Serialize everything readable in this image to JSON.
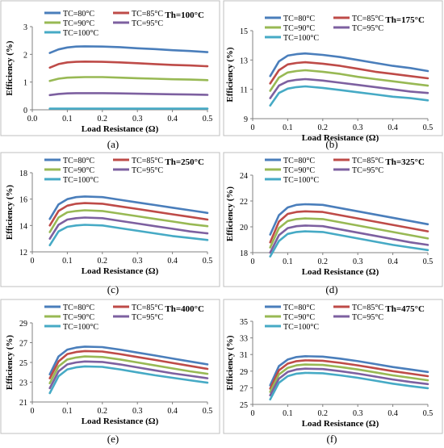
{
  "colors": {
    "TC=80°C": "#4a7ebb",
    "TC=85°C": "#be4b48",
    "TC=90°C": "#98b954",
    "TC=95°C": "#7d60a0",
    "TC=100°C": "#46aac5"
  },
  "legend_labels": [
    "TC=80°C",
    "TC=85°C",
    "TC=90°C",
    "TC=95°C",
    "TC=100°C"
  ],
  "chart_data": [
    {
      "type": "line",
      "panel": "(a)",
      "title": "Th=100°C",
      "xlabel": "Load Resistance (Ω)",
      "ylabel": "Efficiency (%)",
      "xlim": [
        0,
        0.5
      ],
      "ylim": [
        0,
        3
      ],
      "xticks": [
        "0.0",
        "0.1",
        "0.2",
        "0.3",
        "0.4",
        "0.5"
      ],
      "yticks": [
        "0",
        "1",
        "2",
        "3"
      ],
      "legend_position": "top",
      "x": [
        0.05,
        0.075,
        0.1,
        0.125,
        0.15,
        0.2,
        0.25,
        0.3,
        0.35,
        0.4,
        0.45,
        0.5
      ],
      "series": [
        {
          "name": "TC=80°C",
          "values": [
            2.05,
            2.18,
            2.25,
            2.28,
            2.29,
            2.28,
            2.26,
            2.22,
            2.19,
            2.15,
            2.12,
            2.08
          ]
        },
        {
          "name": "TC=85°C",
          "values": [
            1.52,
            1.65,
            1.71,
            1.73,
            1.74,
            1.73,
            1.71,
            1.68,
            1.65,
            1.62,
            1.6,
            1.57
          ]
        },
        {
          "name": "TC=90°C",
          "values": [
            1.04,
            1.12,
            1.16,
            1.17,
            1.18,
            1.18,
            1.16,
            1.14,
            1.12,
            1.1,
            1.09,
            1.07
          ]
        },
        {
          "name": "TC=95°C",
          "values": [
            0.53,
            0.57,
            0.59,
            0.6,
            0.6,
            0.6,
            0.59,
            0.58,
            0.57,
            0.56,
            0.55,
            0.54
          ]
        },
        {
          "name": "TC=100°C",
          "values": [
            0.04,
            0.04,
            0.04,
            0.04,
            0.04,
            0.04,
            0.04,
            0.04,
            0.04,
            0.04,
            0.04,
            0.04
          ]
        }
      ]
    },
    {
      "type": "line",
      "panel": "(b)",
      "title": "Th=175°C",
      "xlabel": "Load Resistance (Ω)",
      "ylabel": "Efficiency (%)",
      "xlim": [
        0,
        0.5
      ],
      "ylim": [
        9,
        15
      ],
      "xticks": [
        "0",
        "0.1",
        "0.2",
        "0.3",
        "0.4",
        "0.5"
      ],
      "yticks": [
        "9",
        "11",
        "13",
        "15"
      ],
      "legend_position": "top",
      "x": [
        0.05,
        0.075,
        0.1,
        0.125,
        0.15,
        0.2,
        0.25,
        0.3,
        0.35,
        0.4,
        0.45,
        0.5
      ],
      "series": [
        {
          "name": "TC=80°C",
          "values": [
            11.9,
            12.9,
            13.3,
            13.4,
            13.45,
            13.35,
            13.2,
            13.0,
            12.8,
            12.6,
            12.45,
            12.25
          ]
        },
        {
          "name": "TC=85°C",
          "values": [
            11.4,
            12.3,
            12.7,
            12.8,
            12.85,
            12.75,
            12.6,
            12.4,
            12.2,
            12.05,
            11.9,
            11.75
          ]
        },
        {
          "name": "TC=90°C",
          "values": [
            10.9,
            11.8,
            12.15,
            12.25,
            12.3,
            12.2,
            12.05,
            11.85,
            11.7,
            11.55,
            11.4,
            11.25
          ]
        },
        {
          "name": "TC=95°C",
          "values": [
            10.4,
            11.25,
            11.55,
            11.65,
            11.7,
            11.6,
            11.45,
            11.3,
            11.15,
            11.0,
            10.85,
            10.75
          ]
        },
        {
          "name": "TC=100°C",
          "values": [
            9.9,
            10.75,
            11.05,
            11.15,
            11.2,
            11.1,
            10.95,
            10.8,
            10.65,
            10.5,
            10.4,
            10.25
          ]
        }
      ]
    },
    {
      "type": "line",
      "panel": "(c)",
      "title": "Th=250°C",
      "xlabel": "Load Resistance (Ω)",
      "ylabel": "Efficiency (%)",
      "xlim": [
        0,
        0.5
      ],
      "ylim": [
        12,
        18
      ],
      "xticks": [
        "0",
        "0.1",
        "0.2",
        "0.3",
        "0.4",
        "0.5"
      ],
      "yticks": [
        "12",
        "14",
        "16",
        "18"
      ],
      "legend_position": "top",
      "x": [
        0.05,
        0.075,
        0.1,
        0.125,
        0.15,
        0.2,
        0.25,
        0.3,
        0.35,
        0.4,
        0.45,
        0.5
      ],
      "series": [
        {
          "name": "TC=80°C",
          "values": [
            14.5,
            15.6,
            16.0,
            16.15,
            16.2,
            16.15,
            15.95,
            15.75,
            15.55,
            15.35,
            15.15,
            14.95
          ]
        },
        {
          "name": "TC=85°C",
          "values": [
            14.0,
            15.1,
            15.5,
            15.65,
            15.7,
            15.65,
            15.45,
            15.25,
            15.05,
            14.85,
            14.65,
            14.45
          ]
        },
        {
          "name": "TC=90°C",
          "values": [
            13.5,
            14.6,
            15.0,
            15.1,
            15.15,
            15.1,
            14.9,
            14.7,
            14.5,
            14.3,
            14.1,
            13.95
          ]
        },
        {
          "name": "TC=95°C",
          "values": [
            13.0,
            14.05,
            14.45,
            14.55,
            14.6,
            14.55,
            14.35,
            14.15,
            13.95,
            13.75,
            13.55,
            13.4
          ]
        },
        {
          "name": "TC=100°C",
          "values": [
            12.5,
            13.55,
            13.9,
            14.0,
            14.05,
            14.0,
            13.8,
            13.6,
            13.4,
            13.2,
            13.05,
            12.9
          ]
        }
      ]
    },
    {
      "type": "line",
      "panel": "(d)",
      "title": "Th=325°C",
      "xlabel": "Load Resistance (Ω)",
      "ylabel": "Efficiency (%)",
      "xlim": [
        0,
        0.5
      ],
      "ylim": [
        18,
        24
      ],
      "xticks": [
        "0",
        "0.1",
        "0.2",
        "0.3",
        "0.4",
        "0.5"
      ],
      "yticks": [
        "18",
        "20",
        "22",
        "24"
      ],
      "legend_position": "top",
      "x": [
        0.05,
        0.075,
        0.1,
        0.125,
        0.15,
        0.2,
        0.25,
        0.3,
        0.35,
        0.4,
        0.45,
        0.5
      ],
      "series": [
        {
          "name": "TC=80°C",
          "values": [
            19.4,
            20.9,
            21.5,
            21.7,
            21.75,
            21.7,
            21.45,
            21.2,
            20.95,
            20.7,
            20.45,
            20.2
          ]
        },
        {
          "name": "TC=85°C",
          "values": [
            18.8,
            20.4,
            21.0,
            21.15,
            21.2,
            21.15,
            20.9,
            20.65,
            20.4,
            20.15,
            19.9,
            19.65
          ]
        },
        {
          "name": "TC=90°C",
          "values": [
            18.4,
            19.9,
            20.45,
            20.6,
            20.65,
            20.6,
            20.35,
            20.1,
            19.85,
            19.6,
            19.35,
            19.1
          ]
        },
        {
          "name": "TC=95°C",
          "values": [
            18.0,
            19.35,
            19.9,
            20.05,
            20.1,
            20.05,
            19.8,
            19.55,
            19.3,
            19.05,
            18.8,
            18.6
          ]
        },
        {
          "name": "TC=100°C",
          "values": [
            17.7,
            18.9,
            19.45,
            19.6,
            19.65,
            19.6,
            19.35,
            19.1,
            18.85,
            18.6,
            18.4,
            18.2
          ]
        }
      ]
    },
    {
      "type": "line",
      "panel": "(e)",
      "title": "Th=400°C",
      "xlabel": "Load Resistance (Ω)",
      "ylabel": "Efficiency (%)",
      "xlim": [
        0,
        0.5
      ],
      "ylim": [
        21,
        29
      ],
      "xticks": [
        "0",
        "0.1",
        "0.2",
        "0.3",
        "0.4",
        "0.5"
      ],
      "yticks": [
        "21",
        "23",
        "25",
        "27",
        "29"
      ],
      "legend_position": "top",
      "x": [
        0.05,
        0.075,
        0.1,
        0.125,
        0.15,
        0.2,
        0.25,
        0.3,
        0.35,
        0.4,
        0.45,
        0.5
      ],
      "series": [
        {
          "name": "TC=80°C",
          "values": [
            23.8,
            25.6,
            26.3,
            26.5,
            26.6,
            26.55,
            26.3,
            26.0,
            25.7,
            25.4,
            25.1,
            24.8
          ]
        },
        {
          "name": "TC=85°C",
          "values": [
            23.4,
            25.1,
            25.85,
            26.05,
            26.15,
            26.1,
            25.85,
            25.55,
            25.25,
            24.95,
            24.65,
            24.35
          ]
        },
        {
          "name": "TC=90°C",
          "values": [
            22.9,
            24.6,
            25.3,
            25.5,
            25.6,
            25.55,
            25.3,
            25.0,
            24.7,
            24.4,
            24.1,
            23.85
          ]
        },
        {
          "name": "TC=95°C",
          "values": [
            22.4,
            24.1,
            24.8,
            25.0,
            25.1,
            25.05,
            24.8,
            24.5,
            24.2,
            23.9,
            23.65,
            23.4
          ]
        },
        {
          "name": "TC=100°C",
          "values": [
            21.9,
            23.6,
            24.3,
            24.5,
            24.6,
            24.55,
            24.3,
            24.0,
            23.7,
            23.45,
            23.2,
            22.95
          ]
        }
      ]
    },
    {
      "type": "line",
      "panel": "(f)",
      "title": "Th=475°C",
      "xlabel": "Load Resistance (Ω)",
      "ylabel": "Efficiency (%)",
      "xlim": [
        0,
        0.5
      ],
      "ylim": [
        25,
        35
      ],
      "xticks": [
        "0",
        "0.1",
        "0.2",
        "0.3",
        "0.4",
        "0.5"
      ],
      "yticks": [
        "25",
        "27",
        "29",
        "31",
        "33",
        "35"
      ],
      "legend_position": "top",
      "x": [
        0.05,
        0.075,
        0.1,
        0.125,
        0.15,
        0.2,
        0.25,
        0.3,
        0.35,
        0.4,
        0.45,
        0.5
      ],
      "series": [
        {
          "name": "TC=80°C",
          "values": [
            27.3,
            29.6,
            30.4,
            30.7,
            30.8,
            30.75,
            30.5,
            30.2,
            29.85,
            29.5,
            29.2,
            28.9
          ]
        },
        {
          "name": "TC=85°C",
          "values": [
            26.9,
            29.1,
            29.9,
            30.2,
            30.3,
            30.25,
            30.0,
            29.7,
            29.35,
            29.0,
            28.7,
            28.4
          ]
        },
        {
          "name": "TC=90°C",
          "values": [
            26.5,
            28.6,
            29.4,
            29.7,
            29.8,
            29.75,
            29.5,
            29.2,
            28.85,
            28.5,
            28.2,
            27.9
          ]
        },
        {
          "name": "TC=95°C",
          "values": [
            26.1,
            28.1,
            28.9,
            29.2,
            29.3,
            29.25,
            29.0,
            28.7,
            28.35,
            28.0,
            27.7,
            27.45
          ]
        },
        {
          "name": "TC=100°C",
          "values": [
            25.6,
            27.6,
            28.4,
            28.7,
            28.8,
            28.75,
            28.5,
            28.2,
            27.85,
            27.5,
            27.2,
            26.95
          ]
        }
      ]
    }
  ]
}
